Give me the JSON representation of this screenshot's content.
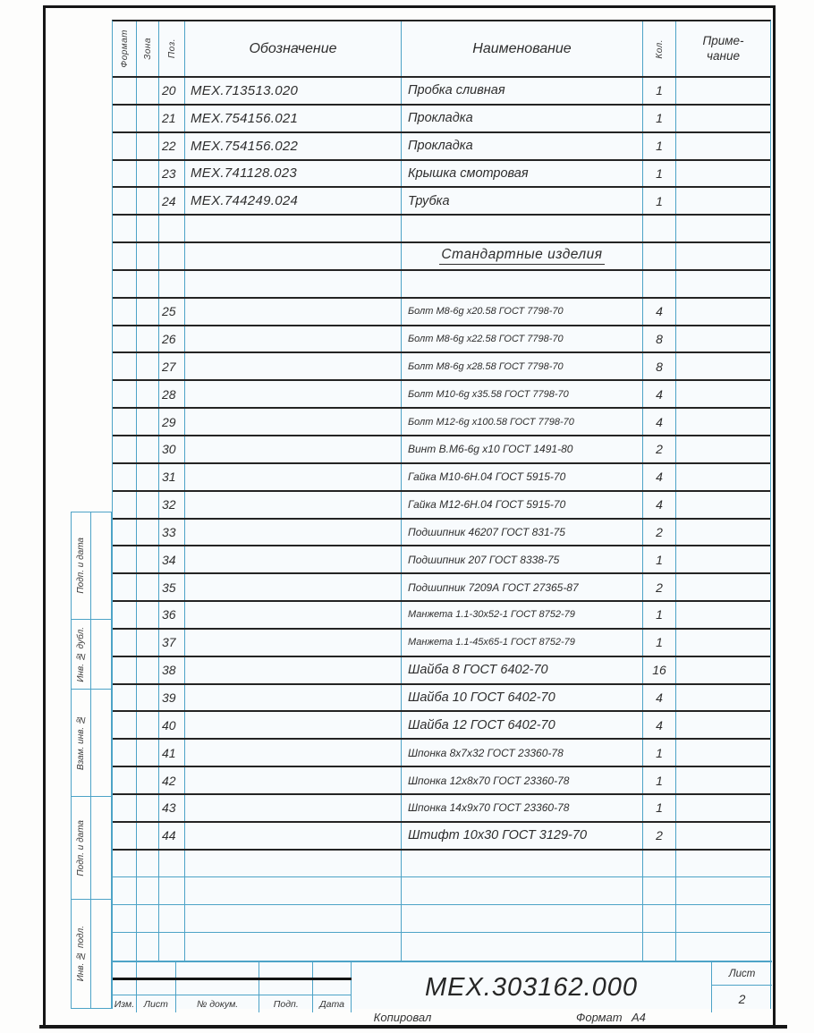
{
  "table": {
    "headers": {
      "format": "Формат",
      "zone": "Зона",
      "pos": "Поз.",
      "designation": "Обозначение",
      "name": "Наименование",
      "qty": "Кол.",
      "note_line1": "Приме-",
      "note_line2": "чание"
    },
    "section_title": "Стандартные изделия",
    "rows": [
      {
        "t": "item",
        "pos": "20",
        "ob": "МЕХ.713513.020",
        "na": "Пробка сливная",
        "kol": "1"
      },
      {
        "t": "item",
        "pos": "21",
        "ob": "МЕХ.754156.021",
        "na": "Прокладка",
        "kol": "1"
      },
      {
        "t": "item",
        "pos": "22",
        "ob": "МЕХ.754156.022",
        "na": "Прокладка",
        "kol": "1"
      },
      {
        "t": "item",
        "pos": "23",
        "ob": "МЕХ.741128.023",
        "na": "Крышка смотровая",
        "kol": "1"
      },
      {
        "t": "item",
        "pos": "24",
        "ob": "МЕХ.744249.024",
        "na": "Трубка",
        "kol": "1"
      },
      {
        "t": "empty"
      },
      {
        "t": "section",
        "na": "Стандартные изделия"
      },
      {
        "t": "empty"
      },
      {
        "t": "item",
        "pos": "25",
        "ob": "",
        "na": "Болт М8-6g х20.58 ГОСТ 7798-70",
        "kol": "4"
      },
      {
        "t": "item",
        "pos": "26",
        "ob": "",
        "na": "Болт М8-6g х22.58 ГОСТ 7798-70",
        "kol": "8"
      },
      {
        "t": "item",
        "pos": "27",
        "ob": "",
        "na": "Болт М8-6g х28.58 ГОСТ 7798-70",
        "kol": "8"
      },
      {
        "t": "item",
        "pos": "28",
        "ob": "",
        "na": "Болт М10-6g х35.58 ГОСТ 7798-70",
        "kol": "4"
      },
      {
        "t": "item",
        "pos": "29",
        "ob": "",
        "na": "Болт М12-6g х100.58 ГОСТ 7798-70",
        "kol": "4"
      },
      {
        "t": "item",
        "pos": "30",
        "ob": "",
        "na": "Винт В.М6-6g х10 ГОСТ 1491-80",
        "kol": "2"
      },
      {
        "t": "item",
        "pos": "31",
        "ob": "",
        "na": "Гайка М10-6Н.04 ГОСТ 5915-70",
        "kol": "4"
      },
      {
        "t": "item",
        "pos": "32",
        "ob": "",
        "na": "Гайка М12-6Н.04 ГОСТ 5915-70",
        "kol": "4"
      },
      {
        "t": "item",
        "pos": "33",
        "ob": "",
        "na": "Подшипник 46207 ГОСТ 831-75",
        "kol": "2"
      },
      {
        "t": "item",
        "pos": "34",
        "ob": "",
        "na": "Подшипник 207 ГОСТ 8338-75",
        "kol": "1"
      },
      {
        "t": "item",
        "pos": "35",
        "ob": "",
        "na": "Подшипник 7209А ГОСТ 27365-87",
        "kol": "2"
      },
      {
        "t": "item",
        "pos": "36",
        "ob": "",
        "na": "Манжета 1.1-30х52-1 ГОСТ 8752-79",
        "kol": "1"
      },
      {
        "t": "item",
        "pos": "37",
        "ob": "",
        "na": "Манжета 1.1-45х65-1 ГОСТ 8752-79",
        "kol": "1"
      },
      {
        "t": "item",
        "pos": "38",
        "ob": "",
        "na": "Шайба 8 ГОСТ 6402-70",
        "kol": "16"
      },
      {
        "t": "item",
        "pos": "39",
        "ob": "",
        "na": "Шайба 10 ГОСТ 6402-70",
        "kol": "4"
      },
      {
        "t": "item",
        "pos": "40",
        "ob": "",
        "na": "Шайба 12 ГОСТ 6402-70",
        "kol": "4"
      },
      {
        "t": "item",
        "pos": "41",
        "ob": "",
        "na": "Шпонка 8х7х32 ГОСТ 23360-78",
        "kol": "1"
      },
      {
        "t": "item",
        "pos": "42",
        "ob": "",
        "na": "Шпонка 12х8х70 ГОСТ 23360-78",
        "kol": "1"
      },
      {
        "t": "item",
        "pos": "43",
        "ob": "",
        "na": "Шпонка 14х9х70 ГОСТ 23360-78",
        "kol": "1"
      },
      {
        "t": "item",
        "pos": "44",
        "ob": "",
        "na": "Штифт 10х30 ГОСТ 3129-70",
        "kol": "2"
      },
      {
        "t": "empty"
      },
      {
        "t": "empty"
      },
      {
        "t": "empty"
      },
      {
        "t": "empty"
      }
    ]
  },
  "title_block": {
    "izm": "Изм.",
    "list": "Лист",
    "dokum": "№ докум.",
    "podp": "Подп.",
    "date": "Дата",
    "doc_number": "МЕХ.303162.000",
    "sheet_label": "Лист",
    "sheet_number": "2"
  },
  "margin_labels": [
    "Подп. и дата",
    "Инв. № дубл.",
    "Взам. инв. №",
    "Подп. и дата",
    "Инв. № подл."
  ],
  "footer": {
    "copied": "Копировал",
    "format_label": "Формат",
    "format_value": "А4"
  },
  "colors": {
    "grid_blue": "#4da3c7",
    "line_dark": "#1f1f1f",
    "ink": "#2e2e2e"
  }
}
